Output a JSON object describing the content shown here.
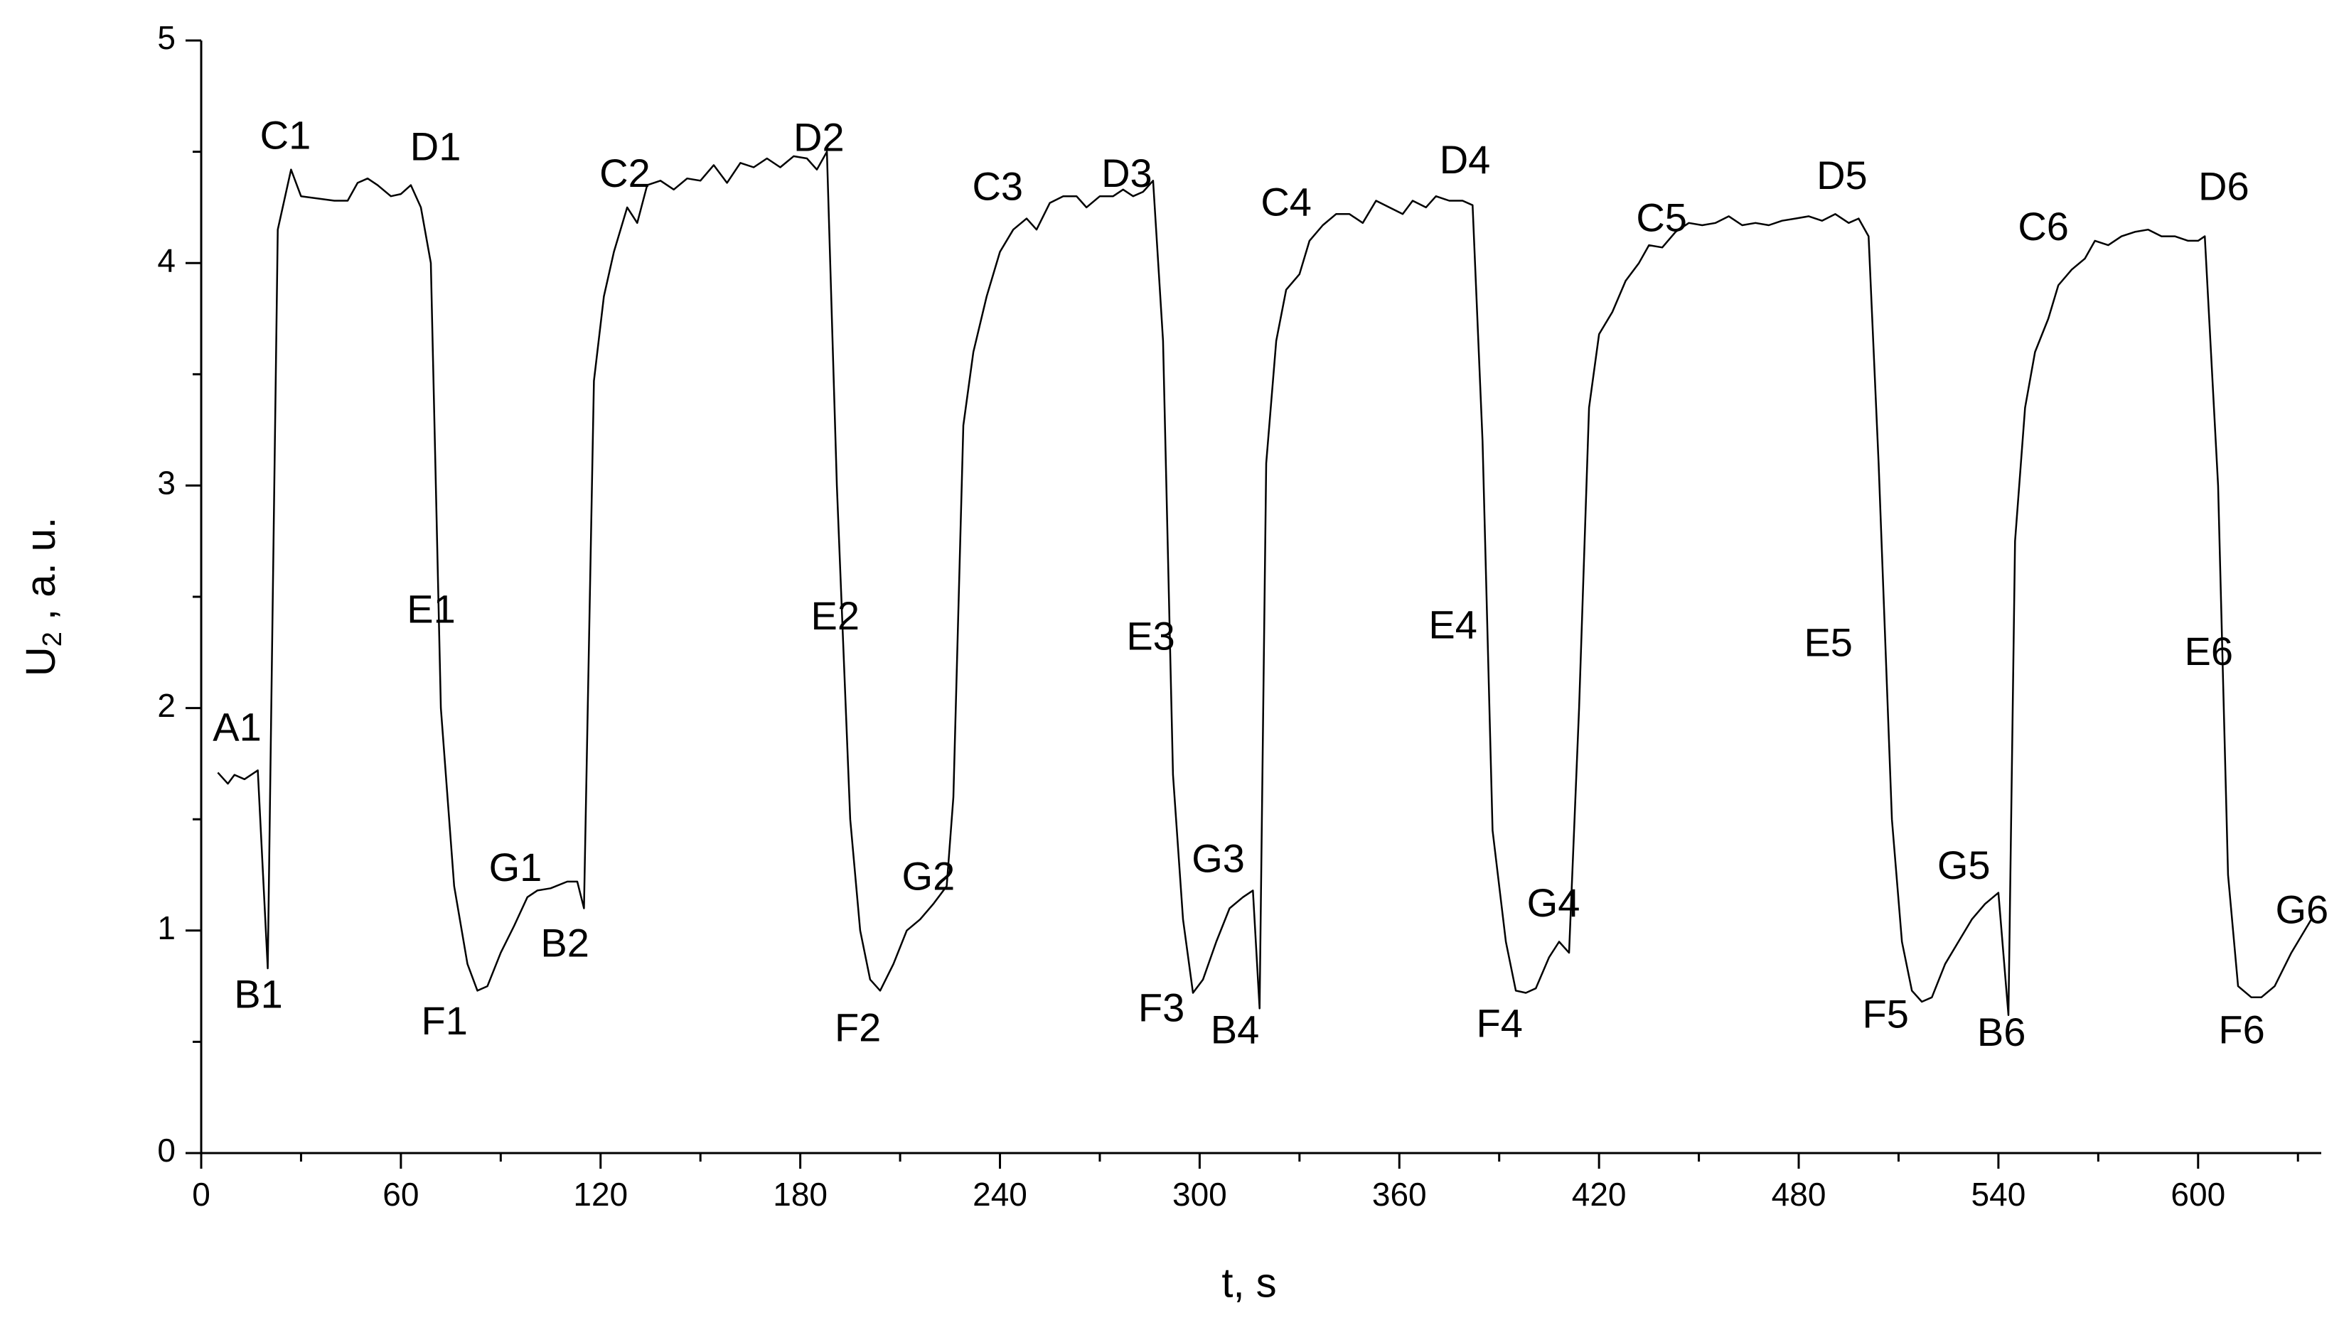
{
  "chart_data": {
    "type": "line",
    "x_label": "t, s",
    "y_label": [
      "U",
      "2",
      " , a. u."
    ],
    "xlim": [
      0,
      637
    ],
    "ylim": [
      0,
      5
    ],
    "xticks": [
      0,
      60,
      120,
      180,
      240,
      300,
      360,
      420,
      480,
      540,
      600
    ],
    "yticks": [
      0,
      1,
      2,
      3,
      4,
      5
    ],
    "color": "#000000",
    "x": [
      5,
      8,
      10,
      13,
      17,
      20,
      23,
      27,
      30,
      35,
      40,
      44,
      47,
      50,
      53,
      57,
      60,
      63,
      66,
      69,
      72,
      76,
      80,
      83,
      86,
      90,
      94,
      98,
      101,
      105,
      110,
      113,
      115,
      118,
      121,
      124,
      128,
      131,
      134,
      138,
      142,
      146,
      150,
      154,
      158,
      162,
      166,
      170,
      174,
      178,
      182,
      185,
      188,
      191,
      195,
      198,
      201,
      204,
      208,
      212,
      216,
      220,
      224,
      226,
      229,
      232,
      236,
      240,
      244,
      248,
      251,
      255,
      259,
      263,
      266,
      270,
      274,
      277,
      280,
      283,
      286,
      289,
      292,
      295,
      298,
      301,
      305,
      309,
      313,
      316,
      318,
      320,
      323,
      326,
      330,
      333,
      337,
      341,
      345,
      349,
      353,
      357,
      361,
      364,
      368,
      371,
      375,
      379,
      382,
      385,
      388,
      392,
      395,
      398,
      401,
      405,
      408,
      411,
      414,
      417,
      420,
      424,
      428,
      432,
      435,
      439,
      443,
      447,
      451,
      455,
      459,
      463,
      467,
      471,
      475,
      479,
      483,
      487,
      491,
      495,
      498,
      501,
      504,
      508,
      511,
      514,
      517,
      520,
      524,
      528,
      532,
      536,
      540,
      543,
      545,
      548,
      551,
      555,
      558,
      562,
      566,
      569,
      573,
      577,
      581,
      585,
      589,
      593,
      597,
      600,
      602,
      606,
      609,
      612,
      616,
      619,
      623,
      628,
      634
    ],
    "values": [
      1.71,
      1.66,
      1.7,
      1.68,
      1.72,
      0.83,
      4.15,
      4.42,
      4.3,
      4.29,
      4.28,
      4.28,
      4.36,
      4.38,
      4.35,
      4.3,
      4.31,
      4.35,
      4.25,
      4.0,
      2.0,
      1.2,
      0.85,
      0.73,
      0.75,
      0.9,
      1.02,
      1.15,
      1.18,
      1.19,
      1.22,
      1.22,
      1.1,
      3.47,
      3.85,
      4.05,
      4.25,
      4.18,
      4.35,
      4.37,
      4.33,
      4.38,
      4.37,
      4.44,
      4.36,
      4.45,
      4.43,
      4.47,
      4.43,
      4.48,
      4.47,
      4.42,
      4.5,
      3.0,
      1.5,
      1.0,
      0.78,
      0.73,
      0.85,
      1.0,
      1.05,
      1.12,
      1.2,
      1.6,
      3.27,
      3.6,
      3.85,
      4.05,
      4.15,
      4.2,
      4.15,
      4.27,
      4.3,
      4.3,
      4.25,
      4.3,
      4.3,
      4.33,
      4.3,
      4.32,
      4.37,
      3.65,
      1.7,
      1.05,
      0.72,
      0.78,
      0.95,
      1.1,
      1.15,
      1.18,
      0.65,
      3.1,
      3.65,
      3.88,
      3.95,
      4.1,
      4.17,
      4.22,
      4.22,
      4.18,
      4.28,
      4.25,
      4.22,
      4.28,
      4.25,
      4.3,
      4.28,
      4.28,
      4.26,
      3.2,
      1.45,
      0.95,
      0.73,
      0.72,
      0.74,
      0.88,
      0.95,
      0.9,
      2.0,
      3.35,
      3.68,
      3.78,
      3.92,
      4.0,
      4.08,
      4.07,
      4.14,
      4.18,
      4.17,
      4.18,
      4.21,
      4.17,
      4.18,
      4.17,
      4.19,
      4.2,
      4.21,
      4.19,
      4.22,
      4.18,
      4.2,
      4.12,
      3.1,
      1.5,
      0.95,
      0.73,
      0.68,
      0.7,
      0.85,
      0.95,
      1.05,
      1.12,
      1.17,
      0.62,
      2.75,
      3.35,
      3.6,
      3.75,
      3.9,
      3.97,
      4.02,
      4.1,
      4.08,
      4.12,
      4.14,
      4.15,
      4.12,
      4.12,
      4.1,
      4.1,
      4.12,
      3.0,
      1.25,
      0.75,
      0.7,
      0.7,
      0.75,
      0.9,
      1.05
    ],
    "annotations": [
      {
        "text": "A1",
        "x": 10.8,
        "y": 1.9
      },
      {
        "text": "B1",
        "x": 17.2,
        "y": 0.7
      },
      {
        "text": "C1",
        "x": 25.3,
        "y": 4.56
      },
      {
        "text": "D1",
        "x": 70.4,
        "y": 4.51
      },
      {
        "text": "E1",
        "x": 69.1,
        "y": 2.43
      },
      {
        "text": "F1",
        "x": 73.1,
        "y": 0.58
      },
      {
        "text": "G1",
        "x": 94.4,
        "y": 1.27
      },
      {
        "text": "B2",
        "x": 109.3,
        "y": 0.93
      },
      {
        "text": "C2",
        "x": 127.3,
        "y": 4.39
      },
      {
        "text": "D2",
        "x": 185.6,
        "y": 4.55
      },
      {
        "text": "E2",
        "x": 190.5,
        "y": 2.4
      },
      {
        "text": "F2",
        "x": 197.3,
        "y": 0.55
      },
      {
        "text": "G2",
        "x": 218.5,
        "y": 1.23
      },
      {
        "text": "C3",
        "x": 239.3,
        "y": 4.33
      },
      {
        "text": "D3",
        "x": 278.1,
        "y": 4.39
      },
      {
        "text": "E3",
        "x": 285.3,
        "y": 2.31
      },
      {
        "text": "F3",
        "x": 288.5,
        "y": 0.64
      },
      {
        "text": "B4",
        "x": 310.6,
        "y": 0.54
      },
      {
        "text": "G3",
        "x": 305.6,
        "y": 1.31
      },
      {
        "text": "C4",
        "x": 326.0,
        "y": 4.26
      },
      {
        "text": "D4",
        "x": 379.7,
        "y": 4.45
      },
      {
        "text": "E4",
        "x": 376.1,
        "y": 2.36
      },
      {
        "text": "F4",
        "x": 390.1,
        "y": 0.57
      },
      {
        "text": "G4",
        "x": 406.3,
        "y": 1.11
      },
      {
        "text": "C5",
        "x": 438.8,
        "y": 4.19
      },
      {
        "text": "D5",
        "x": 493.0,
        "y": 4.38
      },
      {
        "text": "E5",
        "x": 488.9,
        "y": 2.28
      },
      {
        "text": "F5",
        "x": 506.1,
        "y": 0.61
      },
      {
        "text": "G5",
        "x": 529.6,
        "y": 1.28
      },
      {
        "text": "B6",
        "x": 540.9,
        "y": 0.53
      },
      {
        "text": "C6",
        "x": 553.5,
        "y": 4.15
      },
      {
        "text": "D6",
        "x": 607.7,
        "y": 4.33
      },
      {
        "text": "E6",
        "x": 603.2,
        "y": 2.24
      },
      {
        "text": "F6",
        "x": 613.1,
        "y": 0.54
      },
      {
        "text": "G6",
        "x": 631.2,
        "y": 1.08
      }
    ]
  }
}
